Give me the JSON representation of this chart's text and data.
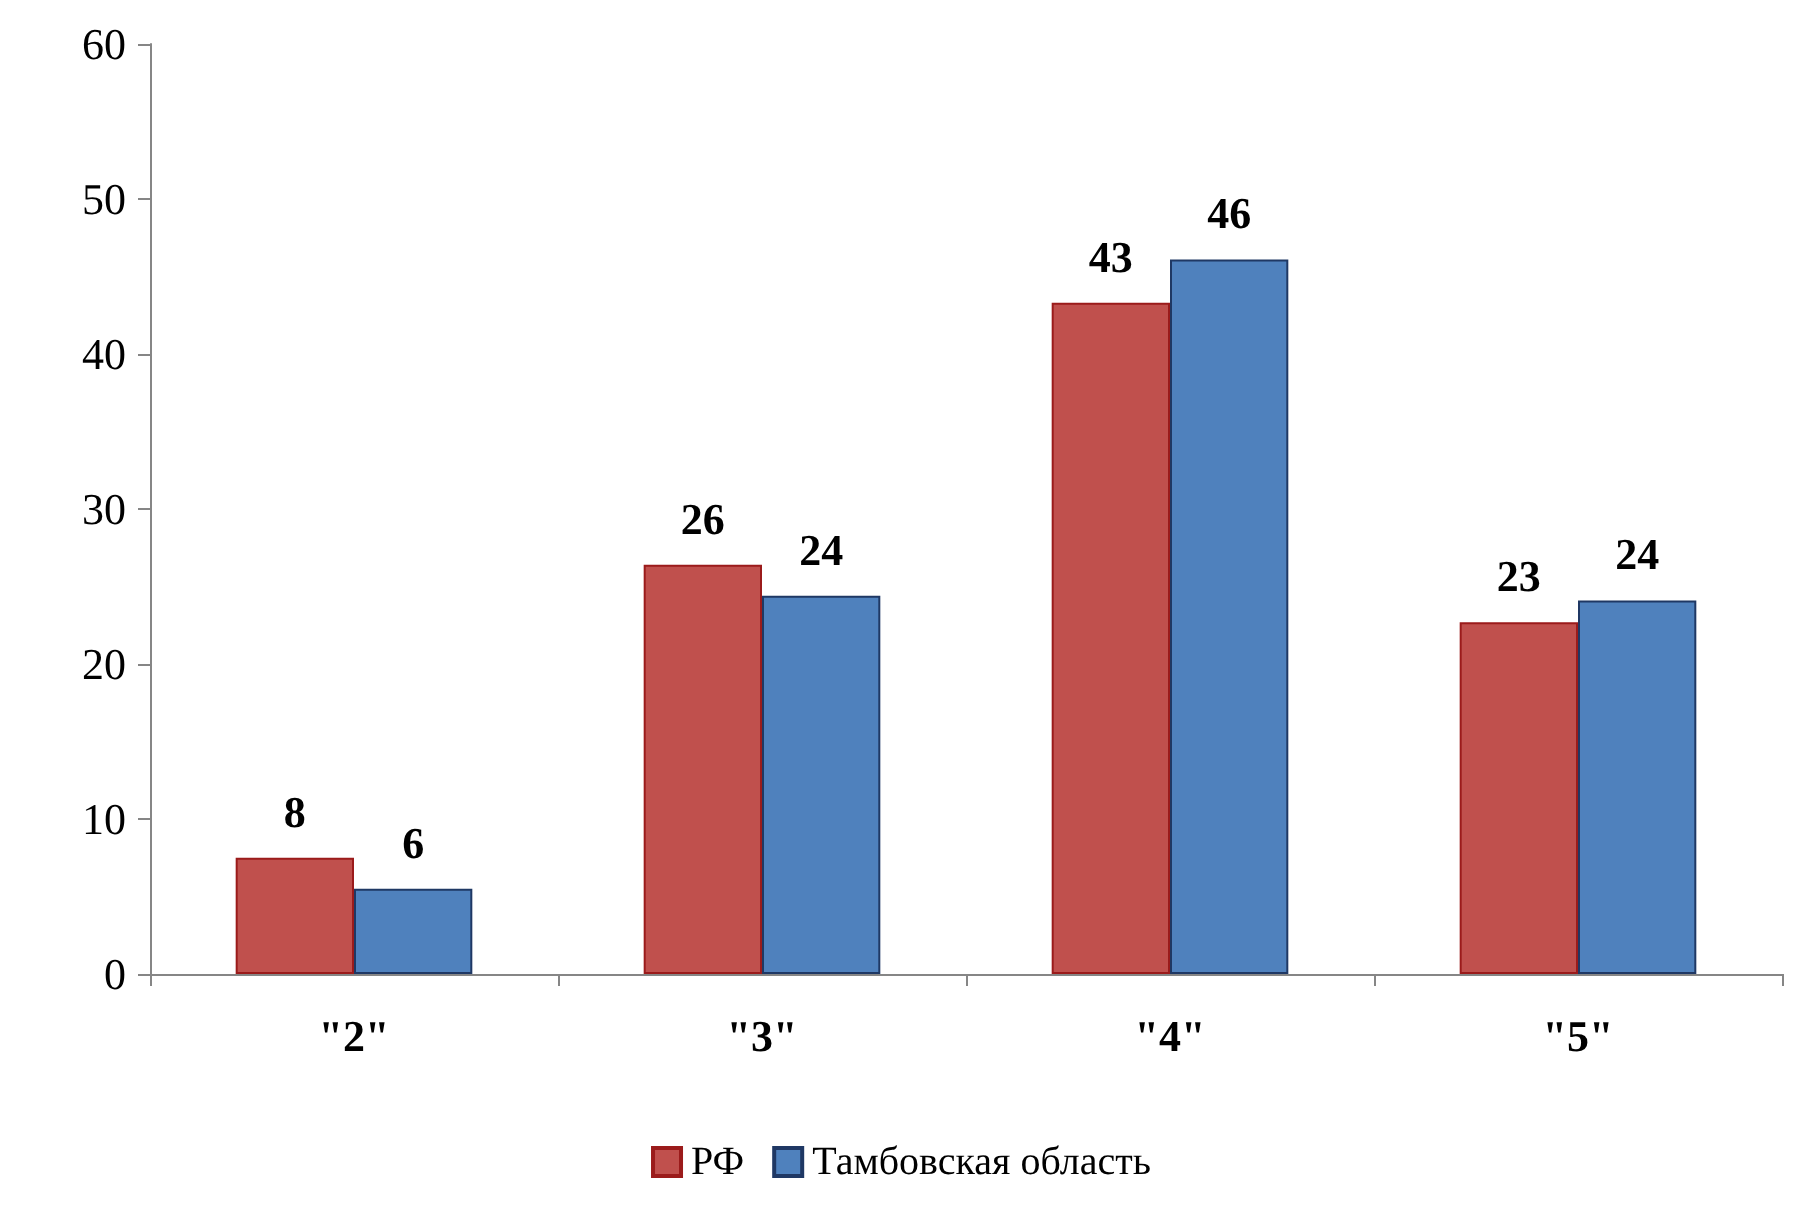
{
  "chart_data": {
    "type": "bar",
    "categories": [
      "\"2\"",
      "\"3\"",
      "\"4\"",
      "\"5\""
    ],
    "series": [
      {
        "name": "РФ",
        "color": "#c0504d",
        "values": [
          7.5,
          26.4,
          43.3,
          22.7
        ],
        "value_labels": [
          "8",
          "26",
          "43",
          "23"
        ]
      },
      {
        "name": "Тамбовская область",
        "color": "#4f81bd",
        "values": [
          5.5,
          24.4,
          46.1,
          24.1
        ],
        "value_labels": [
          "6",
          "24",
          "46",
          "24"
        ]
      }
    ],
    "ylim": [
      0,
      60
    ],
    "yticks": [
      0,
      10,
      20,
      30,
      40,
      50,
      60
    ],
    "grid": false,
    "legend": "bottom"
  }
}
